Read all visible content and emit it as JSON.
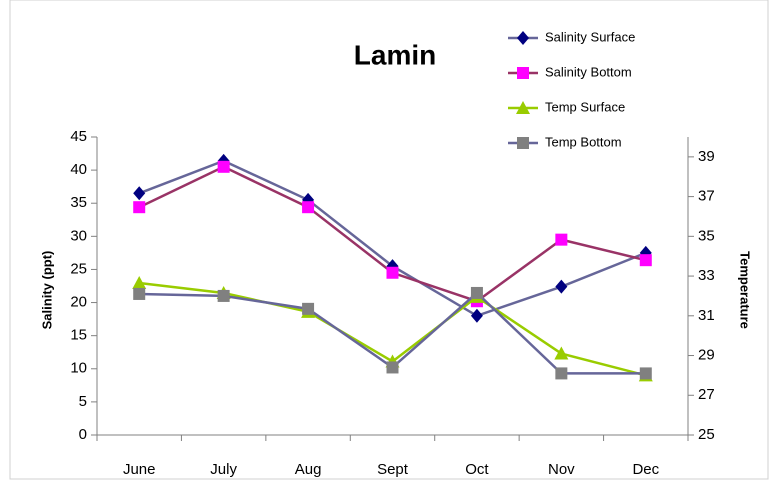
{
  "chart_data": {
    "type": "line",
    "title": "Lamin",
    "categories": [
      "June",
      "July",
      "Aug",
      "Sept",
      "Oct",
      "Nov",
      "Dec"
    ],
    "ylabel": "Salinity (ppt)",
    "y2label": "Temperature",
    "ylim": [
      0,
      45
    ],
    "yticks": [
      0,
      5,
      10,
      15,
      20,
      25,
      30,
      35,
      40,
      45
    ],
    "y2lim": [
      25,
      40
    ],
    "y2ticks": [
      25,
      27,
      29,
      31,
      33,
      35,
      37,
      39
    ],
    "legend": "top-right",
    "series": [
      {
        "name": "Salinity Surface",
        "color": "#666699",
        "marker_color": "#000080",
        "marker": "diamond",
        "values": [
          36.5,
          41.4,
          35.5,
          25.5,
          18,
          22.4,
          27.5
        ]
      },
      {
        "name": "Salinity Bottom",
        "color": "#993366",
        "marker_color": "#ff00ff",
        "marker": "square",
        "values": [
          34.4,
          40.5,
          34.4,
          24.5,
          20.2,
          29.5,
          26.4
        ]
      },
      {
        "name": "Temp Surface",
        "color": "#99cc00",
        "marker_color": "#99cc00",
        "marker": "triangle",
        "axis": "y2",
        "values": [
          32.65,
          32.15,
          31.2,
          28.7,
          31.95,
          29.1,
          28.0
        ]
      },
      {
        "name": "Temp Bottom",
        "color": "#666699",
        "marker_color": "#808080",
        "marker": "square",
        "axis": "y2",
        "values": [
          32.1,
          32.0,
          31.35,
          28.4,
          32.15,
          28.1,
          28.1
        ]
      }
    ]
  }
}
